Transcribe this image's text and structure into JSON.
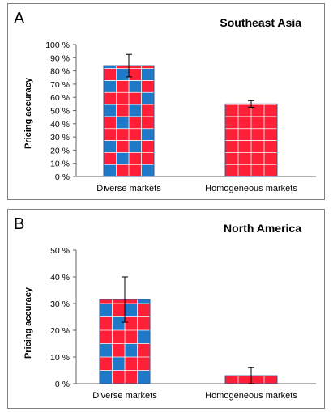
{
  "chart_data": [
    {
      "panel_label": "A",
      "title": "Southeast Asia",
      "type": "bar",
      "ylabel": "Pricing accuracy",
      "categories": [
        "Diverse markets",
        "Homogeneous markets"
      ],
      "values": [
        84,
        55
      ],
      "error": [
        8.5,
        2.5
      ],
      "ylim": [
        0,
        100
      ],
      "yticks": [
        "0 %",
        "10 %",
        "20 %",
        "30 %",
        "40 %",
        "50 %",
        "60 %",
        "70 %",
        "80 %",
        "90 %",
        "100 %"
      ],
      "bar_styles": [
        "checkered",
        "solid"
      ],
      "colors": {
        "red": "#ff1f37",
        "blue": "#1f78c8",
        "grid": "#ffffff"
      }
    },
    {
      "panel_label": "B",
      "title": "North America",
      "type": "bar",
      "ylabel": "Pricing accuracy",
      "categories": [
        "Diverse markets",
        "Homogeneous markets"
      ],
      "values": [
        31.5,
        3
      ],
      "error": [
        8.5,
        3
      ],
      "ylim": [
        0,
        50
      ],
      "yticks": [
        "0 %",
        "10 %",
        "20 %",
        "30 %",
        "40 %",
        "50 %"
      ],
      "bar_styles": [
        "checkered",
        "solid"
      ],
      "colors": {
        "red": "#ff1f37",
        "blue": "#1f78c8",
        "grid": "#ffffff"
      }
    }
  ]
}
